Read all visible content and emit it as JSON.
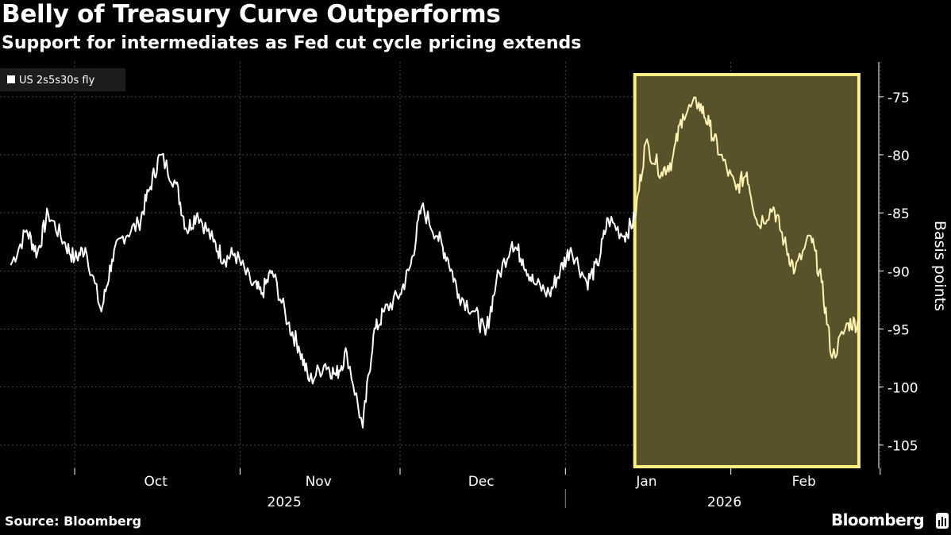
{
  "header": {
    "title": "Belly of Treasury Curve Outperforms",
    "subtitle": "Support for intermediates as Fed cut cycle pricing extends"
  },
  "footer": {
    "source": "Source: Bloomberg",
    "brand": "Bloomberg"
  },
  "colors": {
    "background": "#000000",
    "series_line": "#ffffff",
    "highlight_fill": "#58522a",
    "highlight_border": "#ffef82",
    "gridline": "#4a4a4a",
    "axis_text": "#ffffff"
  },
  "chart_data": {
    "type": "line",
    "title": "Belly of Treasury Curve Outperforms",
    "subtitle": "Support for intermediates as Fed cut cycle pricing extends",
    "ylabel": "Basis points",
    "xlabel": "",
    "ylim": [
      -107,
      -72
    ],
    "y_ticks": [
      -75,
      -80,
      -85,
      -90,
      -95,
      -100,
      -105
    ],
    "y_tick_labels": [
      "-75",
      "-80",
      "-85",
      "-90",
      "-95",
      "-100",
      "-105"
    ],
    "x_month_labels": [
      "Oct",
      "Nov",
      "Dec",
      "Jan",
      "Feb"
    ],
    "x_year_labels": [
      "2025",
      "2026"
    ],
    "legend": {
      "entries": [
        "US 2s5s30s fly"
      ],
      "placement": "top-left"
    },
    "grid": "vertical and horizontal dotted",
    "highlight": {
      "start_date": "2026-01-14",
      "end_date": "2026-02-25",
      "note": "shaded yellow box over recent outperformance"
    },
    "series": [
      {
        "name": "US 2s5s30s fly",
        "x": [
          "2025-09-19",
          "2025-09-22",
          "2025-09-24",
          "2025-09-26",
          "2025-09-29",
          "2025-10-01",
          "2025-10-03",
          "2025-10-06",
          "2025-10-08",
          "2025-10-10",
          "2025-10-13",
          "2025-10-15",
          "2025-10-17",
          "2025-10-20",
          "2025-10-22",
          "2025-10-24",
          "2025-10-27",
          "2025-10-29",
          "2025-10-31",
          "2025-11-03",
          "2025-11-05",
          "2025-11-07",
          "2025-11-10",
          "2025-11-12",
          "2025-11-14",
          "2025-11-17",
          "2025-11-19",
          "2025-11-21",
          "2025-11-24",
          "2025-11-26",
          "2025-11-28",
          "2025-12-01",
          "2025-12-03",
          "2025-12-05",
          "2025-12-08",
          "2025-12-10",
          "2025-12-12",
          "2025-12-15",
          "2025-12-17",
          "2025-12-19",
          "2025-12-22",
          "2025-12-24",
          "2025-12-26",
          "2025-12-29",
          "2025-12-31",
          "2026-01-02",
          "2026-01-05",
          "2026-01-07",
          "2026-01-09",
          "2026-01-12",
          "2026-01-14",
          "2026-01-16",
          "2026-01-19",
          "2026-01-21",
          "2026-01-23",
          "2026-01-26",
          "2026-01-28",
          "2026-01-30",
          "2026-02-02",
          "2026-02-04",
          "2026-02-06",
          "2026-02-09",
          "2026-02-11",
          "2026-02-13",
          "2026-02-16",
          "2026-02-18",
          "2026-02-20",
          "2026-02-23",
          "2026-02-25"
        ],
        "values": [
          -89.5,
          -86.5,
          -88.5,
          -85.0,
          -87.5,
          -89.0,
          -88.0,
          -93.5,
          -89.0,
          -87.0,
          -86.0,
          -83.0,
          -80.0,
          -82.5,
          -86.5,
          -85.0,
          -87.5,
          -89.0,
          -88.5,
          -91.0,
          -92.0,
          -90.0,
          -94.5,
          -96.5,
          -99.5,
          -98.0,
          -99.0,
          -97.0,
          -103.5,
          -95.5,
          -93.5,
          -92.0,
          -89.5,
          -84.5,
          -87.0,
          -89.0,
          -92.0,
          -93.5,
          -95.5,
          -91.0,
          -87.5,
          -89.0,
          -91.0,
          -92.0,
          -90.0,
          -88.0,
          -91.0,
          -89.5,
          -85.5,
          -87.0,
          -85.5,
          -79.0,
          -81.5,
          -80.5,
          -76.5,
          -75.5,
          -77.5,
          -80.0,
          -83.0,
          -81.5,
          -86.0,
          -84.5,
          -87.5,
          -90.0,
          -87.0,
          -91.0,
          -97.5,
          -94.5,
          -94.5
        ]
      }
    ]
  }
}
